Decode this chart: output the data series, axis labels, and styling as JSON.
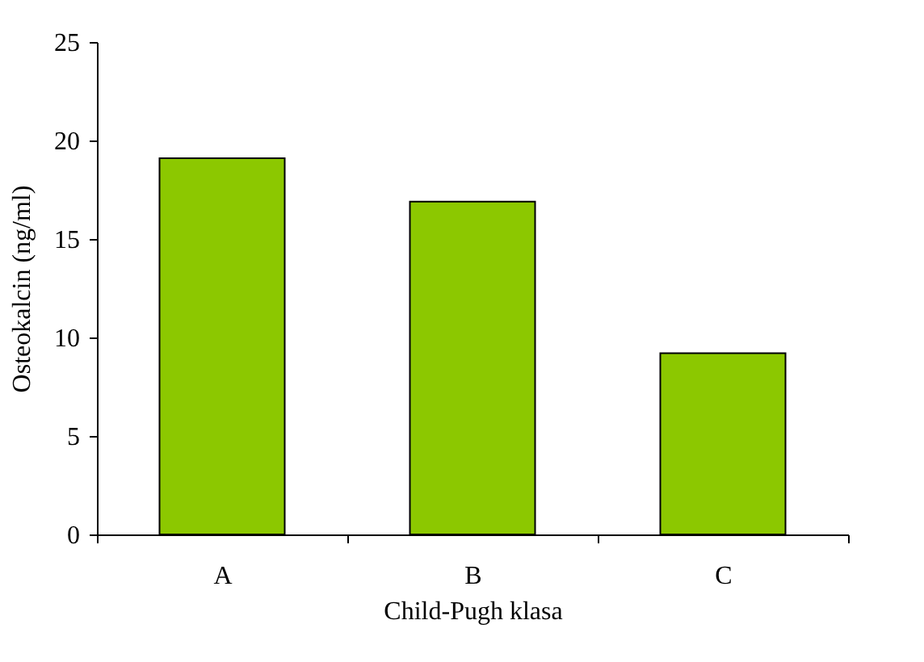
{
  "chart_data": {
    "type": "bar",
    "xlabel": "Child-Pugh klasa",
    "ylabel": "Osteokalcin (ng/ml)",
    "categories": [
      "A",
      "B",
      "C"
    ],
    "values": [
      19.1,
      16.9,
      9.2
    ],
    "color": "#8cc800",
    "ylim": [
      0,
      25
    ],
    "yticks": [
      0,
      5,
      10,
      15,
      20,
      25
    ],
    "grid": false
  }
}
